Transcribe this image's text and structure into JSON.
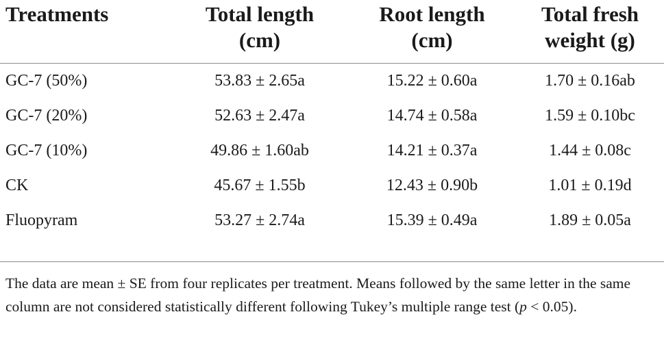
{
  "table": {
    "headers": [
      {
        "line1": "Treatments",
        "line2": ""
      },
      {
        "line1": "Total length",
        "line2": "(cm)"
      },
      {
        "line1": "Root length",
        "line2": "(cm)"
      },
      {
        "line1": "Total fresh",
        "line2": "weight (g)"
      }
    ],
    "rows": [
      {
        "treatment": "GC-7 (50%)",
        "total_length": "53.83 ± 2.65a",
        "root_length": "15.22 ± 0.60a",
        "fresh_weight": "1.70 ± 0.16ab"
      },
      {
        "treatment": "GC-7 (20%)",
        "total_length": "52.63 ± 2.47a",
        "root_length": "14.74 ± 0.58a",
        "fresh_weight": "1.59 ± 0.10bc"
      },
      {
        "treatment": "GC-7 (10%)",
        "total_length": "49.86 ± 1.60ab",
        "root_length": "14.21 ± 0.37a",
        "fresh_weight": "1.44 ± 0.08c"
      },
      {
        "treatment": "CK",
        "total_length": "45.67 ± 1.55b",
        "root_length": "12.43 ± 0.90b",
        "fresh_weight": "1.01 ± 0.19d"
      },
      {
        "treatment": "Fluopyram",
        "total_length": "53.27 ± 2.74a",
        "root_length": "15.39 ± 0.49a",
        "fresh_weight": "1.89 ± 0.05a"
      }
    ]
  },
  "footnote": {
    "text_before": "The data are mean ± SE from four replicates per treatment. Means followed by the same letter in the same column are not considered statistically different following Tukey’s multiple range test (",
    "p_symbol": "p",
    "text_after": " < 0.05)."
  }
}
